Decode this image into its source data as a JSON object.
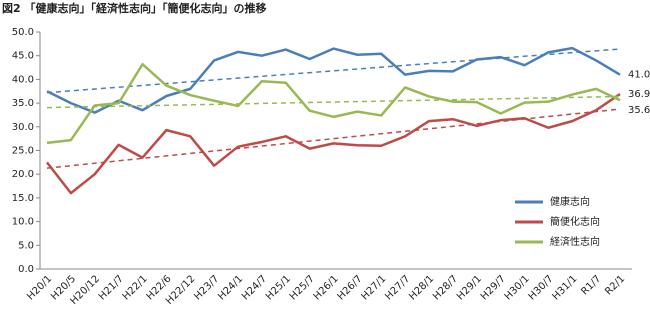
{
  "chart_data": {
    "type": "line",
    "title": "図2 「健康志向」「経済性志向」「簡便化志向」の推移",
    "categories": [
      "H20/1",
      "H20/5",
      "H20/12",
      "H21/7",
      "H22/1",
      "H22/6",
      "H22/12",
      "H23/7",
      "H24/1",
      "H24/7",
      "H25/1",
      "H25/7",
      "H26/1",
      "H26/7",
      "H27/1",
      "H27/7",
      "H28/1",
      "H28/7",
      "H29/1",
      "H29/7",
      "H30/1",
      "H30/7",
      "H31/1",
      "R1/7",
      "R2/1"
    ],
    "series": [
      {
        "name": "健康志向",
        "color": "#4a7ebb",
        "values": [
          37.5,
          35,
          33,
          35.5,
          33.5,
          36.5,
          38,
          44,
          45.8,
          45,
          46.3,
          44.3,
          46.5,
          45.2,
          45.4,
          41,
          41.8,
          41.7,
          44.2,
          44.7,
          43,
          45.7,
          46.6,
          44,
          41.0
        ],
        "value_labels": [
          null,
          null,
          null,
          null,
          null,
          null,
          null,
          null,
          null,
          null,
          null,
          null,
          null,
          null,
          null,
          null,
          null,
          null,
          null,
          null,
          null,
          null,
          null,
          null,
          "41.0"
        ]
      },
      {
        "name": "簡便化志向",
        "color": "#be4b48",
        "values": [
          22.5,
          16,
          20,
          26.2,
          23.5,
          29.3,
          28,
          21.8,
          25.8,
          26.8,
          28,
          25.4,
          26.5,
          26.1,
          26,
          28,
          31.2,
          31.6,
          30.2,
          31.4,
          31.8,
          29.8,
          31.2,
          33.5,
          36.9
        ],
        "value_labels": [
          null,
          null,
          null,
          null,
          null,
          null,
          null,
          null,
          null,
          null,
          null,
          null,
          null,
          null,
          null,
          null,
          null,
          null,
          null,
          null,
          null,
          null,
          null,
          null,
          "36.9"
        ]
      },
      {
        "name": "経済性志向",
        "color": "#98b954",
        "values": [
          26.6,
          27.2,
          34.5,
          35,
          43.2,
          38.7,
          36.7,
          35.5,
          34.4,
          39.6,
          39.3,
          33.4,
          32.1,
          33.2,
          32.4,
          38.3,
          36.4,
          35.3,
          35.2,
          32.8,
          35.1,
          35.3,
          36.8,
          38,
          35.6
        ],
        "value_labels": [
          null,
          null,
          null,
          null,
          null,
          null,
          null,
          null,
          null,
          null,
          null,
          null,
          null,
          null,
          null,
          null,
          null,
          null,
          null,
          null,
          null,
          null,
          null,
          null,
          "35.6"
        ]
      }
    ],
    "ylim": [
      0,
      50
    ],
    "yticks": [
      {
        "value": 0,
        "label": "0.0"
      },
      {
        "value": 5,
        "label": "5.0"
      },
      {
        "value": 10,
        "label": "10.0"
      },
      {
        "value": 15,
        "label": "15.0"
      },
      {
        "value": 20,
        "label": "20.0"
      },
      {
        "value": 25,
        "label": "25.0"
      },
      {
        "value": 30,
        "label": "30.0"
      },
      {
        "value": 35,
        "label": "35.0"
      },
      {
        "value": 40,
        "label": "40.0"
      },
      {
        "value": 45,
        "label": "45.0"
      },
      {
        "value": 50,
        "label": "50.0"
      }
    ],
    "grid": false,
    "trendline": true,
    "legend": "right"
  }
}
